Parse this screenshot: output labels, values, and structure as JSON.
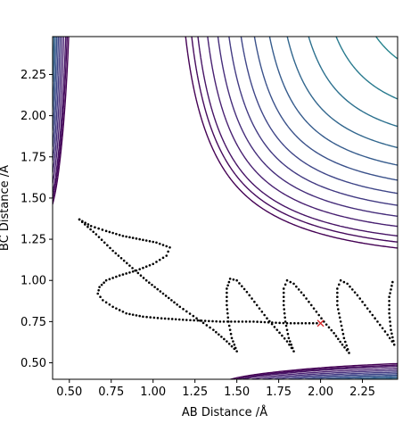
{
  "chart_data": {
    "type": "contour",
    "xlabel": "AB Distance /Å",
    "ylabel": "BC Distance /Å",
    "xlim": [
      0.4,
      2.46
    ],
    "ylim": [
      0.4,
      2.48
    ],
    "xticks": [
      "0.50",
      "0.75",
      "1.00",
      "1.25",
      "1.50",
      "1.75",
      "2.00",
      "2.25"
    ],
    "yticks": [
      "0.50",
      "0.75",
      "1.00",
      "1.25",
      "1.50",
      "1.75",
      "2.00",
      "2.25"
    ],
    "grid": false,
    "contour_levels": [
      -4.3,
      -4.1,
      -3.9,
      -3.6,
      -3.3,
      -3.0,
      -2.7,
      -2.4,
      -2.1,
      -1.8,
      -1.5,
      -1.2,
      -0.9,
      -0.6,
      -0.3,
      0.0,
      0.3,
      0.6,
      1.0,
      1.5,
      2.0,
      2.6,
      3.3
    ],
    "colormap": "viridis",
    "series": [
      {
        "type": "trajectory",
        "color": "#000000",
        "points": [
          [
            0.56,
            1.37
          ],
          [
            0.63,
            1.33
          ],
          [
            0.72,
            1.3
          ],
          [
            0.82,
            1.27
          ],
          [
            0.92,
            1.25
          ],
          [
            1.02,
            1.23
          ],
          [
            1.1,
            1.2
          ],
          [
            1.08,
            1.15
          ],
          [
            1.0,
            1.1
          ],
          [
            0.9,
            1.06
          ],
          [
            0.8,
            1.03
          ],
          [
            0.72,
            1.0
          ],
          [
            0.68,
            0.96
          ],
          [
            0.67,
            0.92
          ],
          [
            0.7,
            0.88
          ],
          [
            0.76,
            0.84
          ],
          [
            0.84,
            0.8
          ],
          [
            0.94,
            0.78
          ],
          [
            1.05,
            0.77
          ],
          [
            1.2,
            0.76
          ],
          [
            1.4,
            0.75
          ],
          [
            1.6,
            0.75
          ],
          [
            1.8,
            0.74
          ],
          [
            2.0,
            0.74
          ]
        ]
      },
      {
        "type": "trajectory",
        "color": "#000000",
        "points": [
          [
            0.56,
            1.37
          ],
          [
            0.66,
            1.28
          ],
          [
            0.76,
            1.18
          ],
          [
            0.86,
            1.09
          ],
          [
            0.96,
            1.0
          ],
          [
            1.06,
            0.92
          ],
          [
            1.16,
            0.84
          ],
          [
            1.26,
            0.77
          ],
          [
            1.36,
            0.7
          ],
          [
            1.44,
            0.63
          ],
          [
            1.5,
            0.57
          ],
          [
            1.47,
            0.65
          ],
          [
            1.45,
            0.75
          ],
          [
            1.44,
            0.85
          ],
          [
            1.44,
            0.95
          ],
          [
            1.46,
            1.01
          ],
          [
            1.5,
            1.0
          ],
          [
            1.56,
            0.93
          ],
          [
            1.62,
            0.85
          ],
          [
            1.68,
            0.77
          ],
          [
            1.74,
            0.7
          ],
          [
            1.8,
            0.63
          ],
          [
            1.84,
            0.57
          ],
          [
            1.81,
            0.65
          ],
          [
            1.79,
            0.75
          ],
          [
            1.78,
            0.85
          ],
          [
            1.78,
            0.95
          ],
          [
            1.8,
            1.0
          ],
          [
            1.84,
            0.98
          ],
          [
            1.9,
            0.91
          ],
          [
            1.96,
            0.83
          ],
          [
            2.02,
            0.75
          ],
          [
            2.08,
            0.68
          ],
          [
            2.13,
            0.61
          ],
          [
            2.17,
            0.56
          ],
          [
            2.14,
            0.65
          ],
          [
            2.12,
            0.75
          ],
          [
            2.1,
            0.85
          ],
          [
            2.1,
            0.95
          ],
          [
            2.12,
            1.0
          ],
          [
            2.16,
            0.98
          ],
          [
            2.22,
            0.91
          ],
          [
            2.28,
            0.83
          ],
          [
            2.34,
            0.75
          ],
          [
            2.4,
            0.67
          ],
          [
            2.44,
            0.61
          ],
          [
            2.42,
            0.7
          ],
          [
            2.41,
            0.8
          ],
          [
            2.41,
            0.9
          ],
          [
            2.43,
            0.99
          ],
          [
            2.46,
            0.99
          ]
        ]
      }
    ],
    "markers": [
      {
        "x": 2.0,
        "y": 0.74,
        "symbol": "x",
        "color": "#d62728"
      }
    ]
  }
}
